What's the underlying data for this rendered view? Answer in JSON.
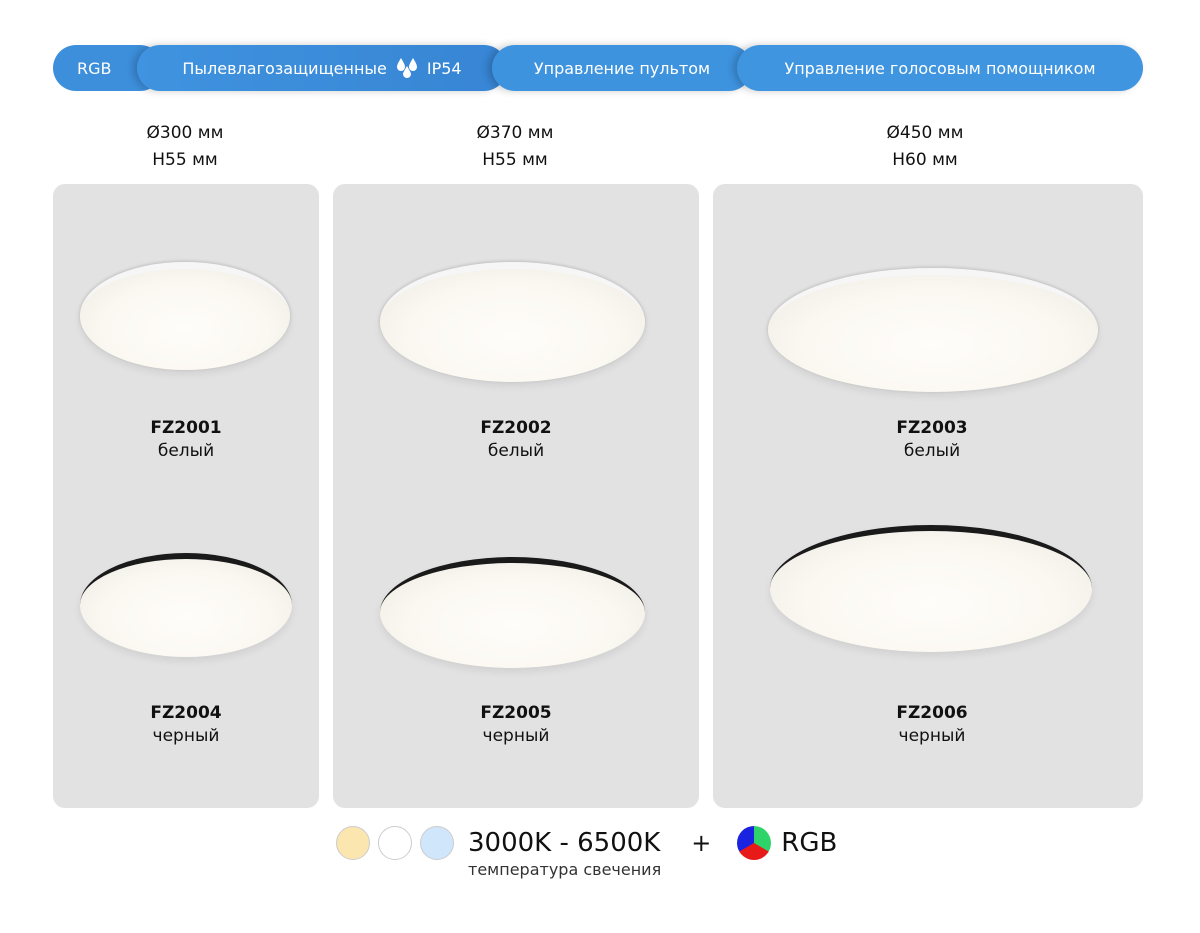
{
  "features": [
    "RGB",
    "Пылевлагозащищенные",
    "IP54",
    "Управление пультом",
    "Управление голосовым помощником"
  ],
  "icons": {
    "water": "water-drops-icon"
  },
  "columns": [
    {
      "diameter": "Ø300 мм",
      "height": "H55 мм",
      "items": [
        {
          "model": "FZ2001",
          "color": "белый"
        },
        {
          "model": "FZ2004",
          "color": "черный"
        }
      ]
    },
    {
      "diameter": "Ø370 мм",
      "height": "H55 мм",
      "items": [
        {
          "model": "FZ2002",
          "color": "белый"
        },
        {
          "model": "FZ2005",
          "color": "черный"
        }
      ]
    },
    {
      "diameter": "Ø450 мм",
      "height": "H60 мм",
      "items": [
        {
          "model": "FZ2003",
          "color": "белый"
        },
        {
          "model": "FZ2006",
          "color": "черный"
        }
      ]
    }
  ],
  "footer": {
    "range": "3000K - 6500K",
    "caption": "температура свечения",
    "plus": "+",
    "rgb": "RGB",
    "swatches": [
      "#fbe6b0",
      "#ffffff",
      "#cfe6fb"
    ]
  },
  "accent": "#3e93df"
}
